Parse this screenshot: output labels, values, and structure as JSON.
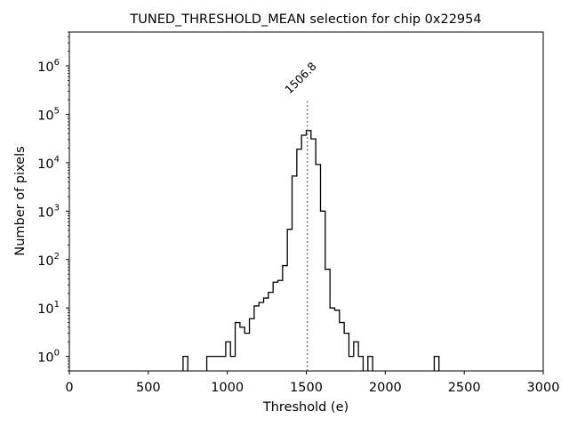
{
  "chart_data": {
    "type": "histogram",
    "title": "TUNED_THRESHOLD_MEAN selection for chip 0x22954",
    "xlabel": "Threshold (e)",
    "ylabel": "Number of pixels",
    "xlim": [
      0,
      3000
    ],
    "ylim": [
      0.5,
      5000000
    ],
    "yscale": "log",
    "x_ticks": [
      {
        "value": 0,
        "label": "0"
      },
      {
        "value": 500,
        "label": "500"
      },
      {
        "value": 1000,
        "label": "1000"
      },
      {
        "value": 1500,
        "label": "1500"
      },
      {
        "value": 2000,
        "label": "2000"
      },
      {
        "value": 2500,
        "label": "2500"
      },
      {
        "value": 3000,
        "label": "3000"
      }
    ],
    "y_ticks": [
      {
        "value": 1,
        "base": "10",
        "exp": "0"
      },
      {
        "value": 10,
        "base": "10",
        "exp": "1"
      },
      {
        "value": 100,
        "base": "10",
        "exp": "2"
      },
      {
        "value": 1000,
        "base": "10",
        "exp": "3"
      },
      {
        "value": 10000,
        "base": "10",
        "exp": "4"
      },
      {
        "value": 100000,
        "base": "10",
        "exp": "5"
      },
      {
        "value": 1000000,
        "base": "10",
        "exp": "6"
      }
    ],
    "bins": [
      {
        "x0": 720,
        "x1": 750,
        "y": 1
      },
      {
        "x0": 870,
        "x1": 990,
        "y": 1
      },
      {
        "x0": 990,
        "x1": 1020,
        "y": 2
      },
      {
        "x0": 1020,
        "x1": 1050,
        "y": 1
      },
      {
        "x0": 1050,
        "x1": 1080,
        "y": 5
      },
      {
        "x0": 1080,
        "x1": 1110,
        "y": 4
      },
      {
        "x0": 1110,
        "x1": 1140,
        "y": 3
      },
      {
        "x0": 1140,
        "x1": 1170,
        "y": 6
      },
      {
        "x0": 1170,
        "x1": 1200,
        "y": 11
      },
      {
        "x0": 1200,
        "x1": 1230,
        "y": 13
      },
      {
        "x0": 1230,
        "x1": 1260,
        "y": 16
      },
      {
        "x0": 1260,
        "x1": 1290,
        "y": 21
      },
      {
        "x0": 1290,
        "x1": 1320,
        "y": 34
      },
      {
        "x0": 1320,
        "x1": 1350,
        "y": 37
      },
      {
        "x0": 1350,
        "x1": 1380,
        "y": 75
      },
      {
        "x0": 1380,
        "x1": 1410,
        "y": 420
      },
      {
        "x0": 1410,
        "x1": 1440,
        "y": 5300
      },
      {
        "x0": 1440,
        "x1": 1470,
        "y": 19000
      },
      {
        "x0": 1470,
        "x1": 1500,
        "y": 37000
      },
      {
        "x0": 1500,
        "x1": 1530,
        "y": 46000
      },
      {
        "x0": 1530,
        "x1": 1560,
        "y": 31000
      },
      {
        "x0": 1560,
        "x1": 1590,
        "y": 9200
      },
      {
        "x0": 1590,
        "x1": 1620,
        "y": 1000
      },
      {
        "x0": 1620,
        "x1": 1650,
        "y": 63
      },
      {
        "x0": 1650,
        "x1": 1680,
        "y": 10
      },
      {
        "x0": 1680,
        "x1": 1710,
        "y": 9
      },
      {
        "x0": 1710,
        "x1": 1740,
        "y": 5
      },
      {
        "x0": 1740,
        "x1": 1770,
        "y": 3
      },
      {
        "x0": 1770,
        "x1": 1800,
        "y": 1
      },
      {
        "x0": 1800,
        "x1": 1830,
        "y": 2
      },
      {
        "x0": 1830,
        "x1": 1860,
        "y": 1
      },
      {
        "x0": 1890,
        "x1": 1920,
        "y": 1
      },
      {
        "x0": 2310,
        "x1": 2340,
        "y": 1
      }
    ],
    "mean_line": {
      "x": 1506.8,
      "label": "1506.8",
      "y_top": 200000,
      "color": "#808080"
    },
    "line_color": "#000000",
    "grid": false,
    "legend": "none"
  }
}
